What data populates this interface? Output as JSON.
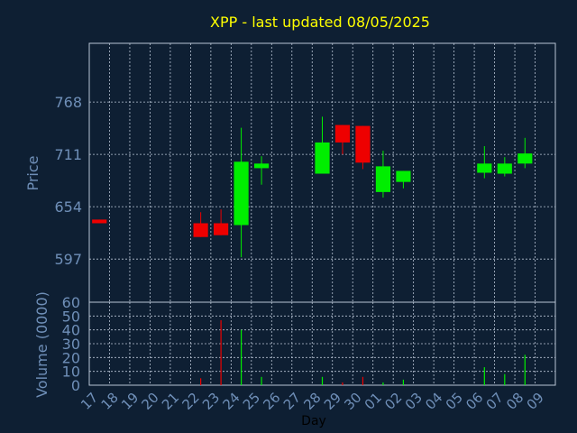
{
  "chart_data": {
    "type": "candlestick",
    "title": "XPP - last updated 08/05/2025",
    "colors": {
      "background": "#0e1f33",
      "title": "#ffff00",
      "axis_text": "#6f8fb8",
      "up": "#00ee00",
      "down": "#ee0000",
      "grid": "#b8c4d4"
    },
    "price_panel": {
      "ylabel": "Price",
      "ylim": [
        550,
        832
      ],
      "yticks": [
        597,
        654,
        711,
        768
      ],
      "grid": true
    },
    "volume_panel": {
      "ylabel": "Volume (0000)",
      "ylim": [
        0,
        60
      ],
      "yticks": [
        0,
        10,
        20,
        30,
        40,
        50,
        60
      ],
      "grid": true
    },
    "xlabel": "Day",
    "categories": [
      "17",
      "18",
      "19",
      "20",
      "21",
      "22",
      "23",
      "24",
      "25",
      "26",
      "27",
      "28",
      "29",
      "30",
      "01",
      "02",
      "03",
      "04",
      "05",
      "06",
      "07",
      "08",
      "09"
    ],
    "candles": [
      {
        "x": "17",
        "open": 640,
        "close": 636,
        "high": 640,
        "low": 636
      },
      {
        "x": "22",
        "open": 636,
        "close": 621,
        "high": 648,
        "low": 621
      },
      {
        "x": "23",
        "open": 636,
        "close": 623,
        "high": 651,
        "low": 623
      },
      {
        "x": "24",
        "open": 634,
        "close": 703,
        "high": 740,
        "low": 599
      },
      {
        "x": "25",
        "open": 696,
        "close": 701,
        "high": 709,
        "low": 678
      },
      {
        "x": "28",
        "open": 690,
        "close": 724,
        "high": 752,
        "low": 690
      },
      {
        "x": "29",
        "open": 743,
        "close": 724,
        "high": 743,
        "low": 711
      },
      {
        "x": "30",
        "open": 742,
        "close": 702,
        "high": 742,
        "low": 695
      },
      {
        "x": "01",
        "open": 670,
        "close": 698,
        "high": 715,
        "low": 664
      },
      {
        "x": "02",
        "open": 681,
        "close": 693,
        "high": 693,
        "low": 674
      },
      {
        "x": "06",
        "open": 691,
        "close": 701,
        "high": 720,
        "low": 685
      },
      {
        "x": "07",
        "open": 690,
        "close": 701,
        "high": 708,
        "low": 687
      },
      {
        "x": "08",
        "open": 701,
        "close": 712,
        "high": 729,
        "low": 696
      }
    ],
    "volume": [
      {
        "x": "22",
        "value": 5,
        "dir": "down"
      },
      {
        "x": "23",
        "value": 47,
        "dir": "down"
      },
      {
        "x": "24",
        "value": 40,
        "dir": "up"
      },
      {
        "x": "25",
        "value": 6,
        "dir": "up"
      },
      {
        "x": "28",
        "value": 6,
        "dir": "up"
      },
      {
        "x": "29",
        "value": 2,
        "dir": "down"
      },
      {
        "x": "30",
        "value": 6,
        "dir": "down"
      },
      {
        "x": "01",
        "value": 2,
        "dir": "up"
      },
      {
        "x": "02",
        "value": 4,
        "dir": "up"
      },
      {
        "x": "06",
        "value": 13,
        "dir": "up"
      },
      {
        "x": "07",
        "value": 8,
        "dir": "up"
      },
      {
        "x": "08",
        "value": 22,
        "dir": "up"
      }
    ]
  }
}
